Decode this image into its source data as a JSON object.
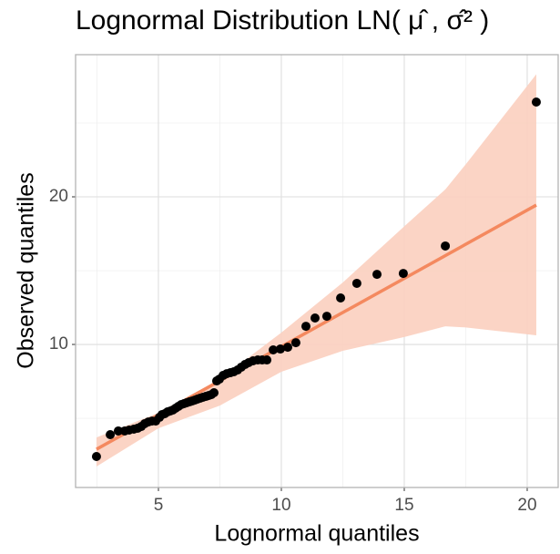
{
  "chart_data": {
    "type": "scatter",
    "title": "Lognormal Distribution LN( μ̂ , σ̂² )",
    "x_label": "Lognormal quantiles",
    "y_label": "Observed quantiles",
    "xlim": [
      1.63,
      21.26
    ],
    "ylim": [
      0.31,
      29.63
    ],
    "xticks": [
      5,
      10,
      15,
      20
    ],
    "yticks": [
      10,
      20
    ],
    "xminor": [
      2.5,
      7.5,
      12.5,
      17.5
    ],
    "yminor": [
      5,
      15,
      25
    ],
    "grid": true,
    "band": {
      "color": "#fbcfbf",
      "x": [
        2.48,
        5,
        7.5,
        10,
        12.5,
        15,
        16.67,
        17.5,
        20.37
      ],
      "lower": [
        1.73,
        4.32,
        5.86,
        8.15,
        9.57,
        10.5,
        11.23,
        11.15,
        10.62
      ],
      "upper": [
        3.7,
        5.37,
        7.65,
        10.8,
        14.2,
        18.0,
        20.5,
        22.2,
        28.3
      ]
    },
    "fit": {
      "color": "#f4895f",
      "x": [
        2.48,
        20.37
      ],
      "values": [
        2.9,
        19.44
      ]
    },
    "points": {
      "color": "#000000",
      "x": [
        2.48,
        3.04,
        3.37,
        3.63,
        3.81,
        4.0,
        4.15,
        4.3,
        4.44,
        4.59,
        4.74,
        4.89,
        5.04,
        5.15,
        5.26,
        5.37,
        5.48,
        5.59,
        5.7,
        5.81,
        5.93,
        6.04,
        6.15,
        6.26,
        6.37,
        6.48,
        6.59,
        6.7,
        6.81,
        6.93,
        7.04,
        7.15,
        7.26,
        7.37,
        7.48,
        7.63,
        7.78,
        7.93,
        8.07,
        8.22,
        8.37,
        8.52,
        8.67,
        8.85,
        9.04,
        9.22,
        9.41,
        9.67,
        9.96,
        10.26,
        10.59,
        11.0,
        11.37,
        11.85,
        12.41,
        13.07,
        13.89,
        14.96,
        16.67,
        20.37
      ],
      "values": [
        2.41,
        3.89,
        4.14,
        4.14,
        4.2,
        4.26,
        4.32,
        4.44,
        4.63,
        4.75,
        4.81,
        4.81,
        5.06,
        5.25,
        5.31,
        5.43,
        5.49,
        5.56,
        5.68,
        5.8,
        5.93,
        5.99,
        6.05,
        6.11,
        6.17,
        6.23,
        6.3,
        6.36,
        6.42,
        6.48,
        6.54,
        6.6,
        6.73,
        7.53,
        7.65,
        7.9,
        8.02,
        8.09,
        8.15,
        8.27,
        8.46,
        8.64,
        8.77,
        8.89,
        8.95,
        8.95,
        8.95,
        9.63,
        9.69,
        9.81,
        10.12,
        11.23,
        11.79,
        11.91,
        13.15,
        14.14,
        14.75,
        14.81,
        16.67,
        26.42
      ]
    }
  }
}
